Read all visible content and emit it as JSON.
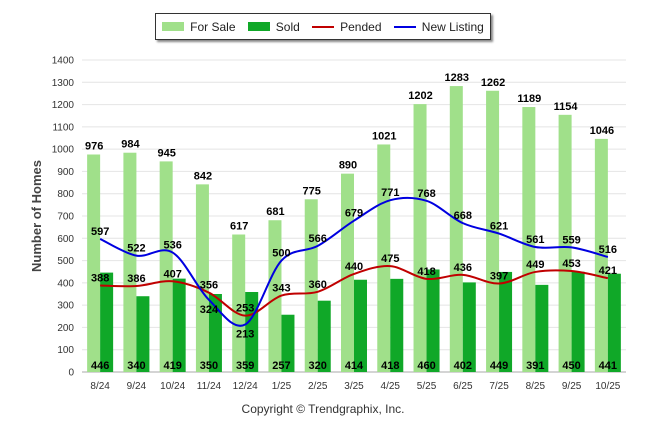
{
  "chart_data": {
    "type": "bar",
    "ylabel": "Number of Homes",
    "xlabel": "",
    "ylim": [
      0,
      1400
    ],
    "yticks": [
      0,
      100,
      200,
      300,
      400,
      500,
      600,
      700,
      800,
      900,
      1000,
      1100,
      1200,
      1300,
      1400
    ],
    "grid": true,
    "legend_placement": "top",
    "categories": [
      "8/24",
      "9/24",
      "10/24",
      "11/24",
      "12/24",
      "1/25",
      "2/25",
      "3/25",
      "4/25",
      "5/25",
      "6/25",
      "7/25",
      "8/25",
      "9/25",
      "10/25"
    ],
    "series": [
      {
        "name": "For Sale",
        "kind": "bar",
        "color": "#a0e08a",
        "values": [
          976,
          984,
          945,
          842,
          617,
          681,
          775,
          890,
          1021,
          1202,
          1283,
          1262,
          1189,
          1154,
          1046
        ]
      },
      {
        "name": "Sold",
        "kind": "bar",
        "color": "#10a828",
        "values": [
          446,
          340,
          419,
          350,
          359,
          257,
          320,
          414,
          418,
          460,
          402,
          449,
          391,
          450,
          441
        ]
      },
      {
        "name": "Pended",
        "kind": "line",
        "color": "#c00000",
        "values": [
          388,
          386,
          407,
          356,
          253,
          343,
          360,
          440,
          475,
          418,
          436,
          397,
          449,
          453,
          421
        ]
      },
      {
        "name": "New Listing",
        "kind": "line",
        "color": "#0000e0",
        "values": [
          597,
          522,
          536,
          324,
          213,
          500,
          566,
          679,
          771,
          768,
          668,
          621,
          561,
          559,
          516
        ]
      }
    ]
  },
  "footer": {
    "copyright": "Copyright © Trendgraphix, Inc."
  }
}
